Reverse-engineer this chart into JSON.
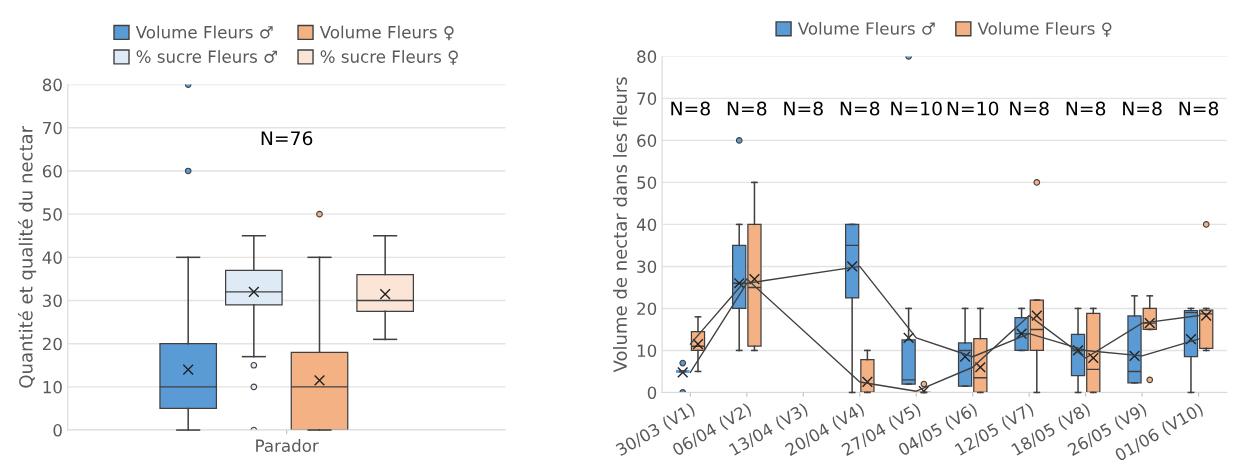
{
  "chart_data": [
    {
      "type": "box",
      "ylabel": "Quantité et qualité du nectar",
      "categories": [
        "Parador"
      ],
      "ylim": [
        0,
        80
      ],
      "yticks": [
        0,
        10,
        20,
        30,
        40,
        50,
        60,
        70,
        80
      ],
      "grid": "y",
      "legend": "top",
      "annotations": [
        "N=76"
      ],
      "series": [
        {
          "name": "Volume Fleurs ♂",
          "color": "#5b9bd5",
          "boxes": [
            {
              "low": 0,
              "q1": 5,
              "median": 10,
              "q3": 20,
              "high": 40,
              "mean": 14,
              "outliers": [
                60,
                80
              ]
            }
          ]
        },
        {
          "name": "% sucre Fleurs ♂",
          "color": "#deebf7",
          "boxes": [
            {
              "low": 17,
              "q1": 29,
              "median": 32,
              "q3": 37,
              "high": 45,
              "mean": 32,
              "outliers": [
                15,
                10,
                0
              ]
            }
          ]
        },
        {
          "name": "Volume Fleurs ♀",
          "color": "#f4b183",
          "boxes": [
            {
              "low": 0,
              "q1": 0,
              "median": 10,
              "q3": 18,
              "high": 40,
              "mean": 11.5,
              "outliers": [
                50
              ]
            }
          ]
        },
        {
          "name": "% sucre Fleurs ♀",
          "color": "#fbe5d6",
          "boxes": [
            {
              "low": 21,
              "q1": 27.5,
              "median": 30,
              "q3": 36,
              "high": 45,
              "mean": 31.5
            }
          ]
        }
      ]
    },
    {
      "type": "box",
      "ylabel": "Volume de nectar dans les fleurs",
      "categories": [
        "30/03 (V1)",
        "06/04 (V2)",
        "13/04 (V3)",
        "20/04 (V4)",
        "27/04 (V5)",
        "04/05 (V6)",
        "12/05 (V7)",
        "18/05 (V8)",
        "26/05 (V9)",
        "01/06 (V10)"
      ],
      "ylim": [
        0,
        80
      ],
      "yticks": [
        0,
        10,
        20,
        30,
        40,
        50,
        60,
        70,
        80
      ],
      "grid": "y",
      "legend": "top",
      "annotations": [
        "N=8",
        "N=8",
        "N=8",
        "N=8",
        "N=10",
        "N=10",
        "N=8",
        "N=8",
        "N=8",
        "N=8"
      ],
      "series": [
        {
          "name": "Volume Fleurs ♂",
          "color": "#5b9bd5",
          "boxes": [
            {
              "low": 5,
              "q1": 5,
              "median": 5,
              "q3": 5,
              "high": 5,
              "mean": 4.8,
              "outliers": [
                7,
                0
              ]
            },
            {
              "low": 10,
              "q1": 20,
              "median": 26,
              "q3": 35,
              "high": 40,
              "mean": 26,
              "outliers": [
                60
              ]
            },
            null,
            {
              "low": 0,
              "q1": 22.5,
              "median": 35,
              "q3": 40,
              "high": 40,
              "mean": 30
            },
            {
              "low": 2,
              "q1": 2,
              "median": 3,
              "q3": 12.5,
              "high": 20,
              "mean": 13,
              "outliers": [
                80
              ]
            },
            {
              "low": 1.5,
              "q1": 1.5,
              "median": 10,
              "q3": 11.8,
              "high": 20,
              "mean": 8.5
            },
            {
              "low": 10,
              "q1": 10,
              "median": 14,
              "q3": 17.8,
              "high": 20,
              "mean": 14
            },
            {
              "low": 0,
              "q1": 4,
              "median": 10,
              "q3": 13.8,
              "high": 20,
              "mean": 10
            },
            {
              "low": 2.3,
              "q1": 2.3,
              "median": 5,
              "q3": 18.2,
              "high": 23,
              "mean": 8.7
            },
            {
              "low": 0,
              "q1": 8.5,
              "median": 19,
              "q3": 19.5,
              "high": 20,
              "mean": 12.7
            }
          ]
        },
        {
          "name": "Volume Fleurs ♀",
          "color": "#f4b183",
          "boxes": [
            {
              "low": 5,
              "q1": 10,
              "median": 11,
              "q3": 14.5,
              "high": 18,
              "mean": 11.5
            },
            {
              "low": 10,
              "q1": 11,
              "median": 25,
              "q3": 40,
              "high": 50,
              "mean": 27
            },
            null,
            {
              "low": 0,
              "q1": 0,
              "median": 0,
              "q3": 7.8,
              "high": 10,
              "mean": 2.5
            },
            {
              "low": 0,
              "q1": 0,
              "median": 0,
              "q3": 0,
              "high": 0,
              "mean": 0.3,
              "outliers": [
                2
              ]
            },
            {
              "low": 0,
              "q1": 0,
              "median": 3.5,
              "q3": 12.8,
              "high": 20,
              "mean": 6
            },
            {
              "low": 0,
              "q1": 10,
              "median": 15,
              "q3": 22,
              "high": 22,
              "mean": 18.3,
              "outliers": [
                50
              ]
            },
            {
              "low": 0,
              "q1": 0,
              "median": 5.5,
              "q3": 18.8,
              "high": 20,
              "mean": 8.2
            },
            {
              "low": 15,
              "q1": 15,
              "median": 16.5,
              "q3": 20,
              "high": 23,
              "mean": 16.5,
              "outliers": [
                3
              ]
            },
            {
              "low": 10,
              "q1": 10.5,
              "median": 18.7,
              "q3": 19.6,
              "high": 20,
              "mean": 18.3,
              "outliers": [
                40
              ]
            }
          ]
        },
        {
          "type": "line",
          "color": "#404040",
          "line_style": "solid",
          "values": [
            4.8,
            26,
            null,
            30,
            13,
            8.5,
            14,
            10,
            8.7,
            12.7
          ]
        },
        {
          "type": "line",
          "color": "#404040",
          "line_style": "solid",
          "values": [
            11.5,
            27,
            null,
            2.5,
            0.3,
            6,
            18.3,
            8.2,
            16.5,
            18.3
          ]
        }
      ]
    }
  ]
}
